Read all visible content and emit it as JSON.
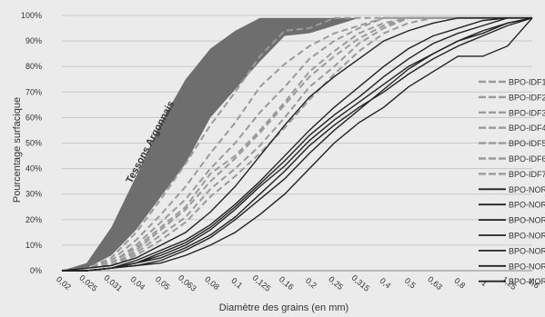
{
  "chart_data": {
    "type": "line",
    "title": "",
    "xlabel": "Diamètre des grains (en mm)",
    "ylabel": "Pourcentage surfacique",
    "categories": [
      "0,02",
      "0,025",
      "0,031",
      "0,04",
      "0,05",
      "0,063",
      "0,08",
      "0,1",
      "0,125",
      "0,16",
      "0,2",
      "0,25",
      "0,315",
      "0,4",
      "0,5",
      "0,63",
      "0,8",
      "1",
      "1,25",
      "1,6"
    ],
    "y_ticks": [
      "0%",
      "10%",
      "20%",
      "30%",
      "40%",
      "50%",
      "60%",
      "70%",
      "80%",
      "90%",
      "100%"
    ],
    "ylim": [
      0,
      100
    ],
    "grid": true,
    "legend_position": "right",
    "annotation": "Tessons Argonnais",
    "band": {
      "name": "Tessons Argonnais",
      "color": "#6e6e6e",
      "upper": [
        0,
        3,
        17,
        37,
        58,
        75,
        87,
        94,
        99,
        99,
        99,
        99,
        99,
        99,
        99,
        99,
        99,
        99,
        99,
        99
      ],
      "lower": [
        0,
        1,
        6,
        16,
        29,
        42,
        60,
        71,
        82,
        92,
        93,
        96,
        99,
        99,
        99,
        99,
        99,
        99,
        99,
        99
      ]
    },
    "series": [
      {
        "name": "BPO-IDF1",
        "style": "dashed",
        "color": "#9a9a9a",
        "values": [
          0,
          1,
          3,
          9,
          17,
          25,
          38,
          45,
          55,
          66,
          78,
          86,
          93,
          97,
          99,
          99,
          99,
          99,
          99,
          99
        ]
      },
      {
        "name": "BPO-IDF2",
        "style": "dashed",
        "color": "#9a9a9a",
        "values": [
          0,
          1,
          2,
          7,
          14,
          21,
          32,
          40,
          49,
          60,
          72,
          80,
          89,
          95,
          99,
          99,
          99,
          99,
          99,
          99
        ]
      },
      {
        "name": "BPO-IDF3",
        "style": "dashed",
        "color": "#9a9a9a",
        "values": [
          0,
          1,
          3,
          10,
          19,
          28,
          40,
          50,
          62,
          72,
          83,
          90,
          95,
          99,
          99,
          99,
          99,
          99,
          99,
          99
        ]
      },
      {
        "name": "BPO-IDF4",
        "style": "dashed",
        "color": "#9a9a9a",
        "values": [
          0,
          1,
          2,
          6,
          12,
          19,
          29,
          37,
          46,
          56,
          67,
          77,
          86,
          93,
          97,
          99,
          99,
          99,
          99,
          99
        ]
      },
      {
        "name": "BPO-IDF5",
        "style": "dashed",
        "color": "#9a9a9a",
        "values": [
          0,
          1,
          4,
          12,
          22,
          33,
          46,
          58,
          72,
          81,
          88,
          93,
          96,
          99,
          99,
          99,
          99,
          99,
          99,
          99
        ]
      },
      {
        "name": "BPO-IDF6",
        "style": "dashed",
        "color": "#9a9a9a",
        "values": [
          0,
          1,
          2,
          8,
          16,
          24,
          35,
          44,
          54,
          65,
          76,
          84,
          91,
          96,
          99,
          99,
          99,
          99,
          99,
          99
        ]
      },
      {
        "name": "BPO-IDF7",
        "style": "dashed",
        "color": "#9a9a9a",
        "values": [
          0,
          1,
          5,
          15,
          28,
          42,
          57,
          70,
          84,
          94,
          95,
          99,
          99,
          99,
          99,
          99,
          99,
          99,
          99,
          99
        ]
      },
      {
        "name": "BPO-NOR",
        "style": "solid",
        "color": "#222222",
        "values": [
          0,
          0,
          1,
          3,
          6,
          10,
          16,
          24,
          33,
          41,
          51,
          59,
          66,
          73,
          80,
          85,
          90,
          93,
          97,
          99
        ]
      },
      {
        "name": "BPO-NOR",
        "style": "solid",
        "color": "#222222",
        "values": [
          0,
          0,
          1,
          2,
          4,
          8,
          13,
          20,
          28,
          36,
          46,
          55,
          63,
          71,
          79,
          85,
          90,
          94,
          97,
          99
        ]
      },
      {
        "name": "BPO-NOR",
        "style": "solid",
        "color": "#222222",
        "values": [
          0,
          0,
          1,
          4,
          8,
          12,
          18,
          26,
          35,
          45,
          55,
          64,
          72,
          80,
          87,
          92,
          95,
          98,
          99,
          99
        ]
      },
      {
        "name": "BPO-NOR",
        "style": "solid",
        "color": "#222222",
        "values": [
          0,
          0,
          1,
          3,
          7,
          11,
          17,
          25,
          34,
          43,
          53,
          61,
          68,
          76,
          83,
          89,
          93,
          96,
          99,
          99
        ]
      },
      {
        "name": "BPO-NOR",
        "style": "solid",
        "color": "#222222",
        "values": [
          0,
          0,
          1,
          2,
          3,
          6,
          10,
          15,
          22,
          30,
          40,
          50,
          58,
          64,
          72,
          78,
          84,
          84,
          88,
          99
        ]
      },
      {
        "name": "BPO-NOR",
        "style": "solid",
        "color": "#222222",
        "values": [
          0,
          1,
          2,
          5,
          10,
          15,
          23,
          33,
          45,
          57,
          68,
          76,
          83,
          90,
          94,
          97,
          99,
          99,
          99,
          99
        ]
      },
      {
        "name": "BPO-NOR",
        "style": "solid",
        "color": "#222222",
        "values": [
          0,
          0,
          1,
          3,
          5,
          9,
          14,
          21,
          30,
          39,
          49,
          57,
          64,
          70,
          77,
          83,
          88,
          92,
          96,
          99
        ]
      }
    ]
  }
}
